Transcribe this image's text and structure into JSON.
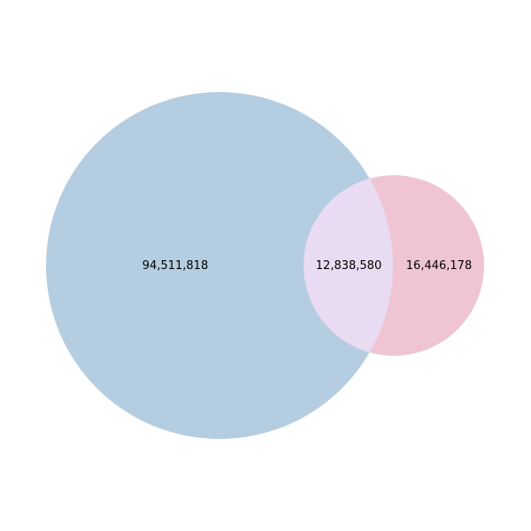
{
  "diagram": {
    "type": "venn-2",
    "regions": {
      "left_only": "94,511,818",
      "intersection": "12,838,580",
      "right_only": "16,446,178"
    },
    "colors": {
      "left_set": "#b5cde0",
      "right_set": "#efc5d4",
      "intersection": "#e8dbf2"
    }
  }
}
